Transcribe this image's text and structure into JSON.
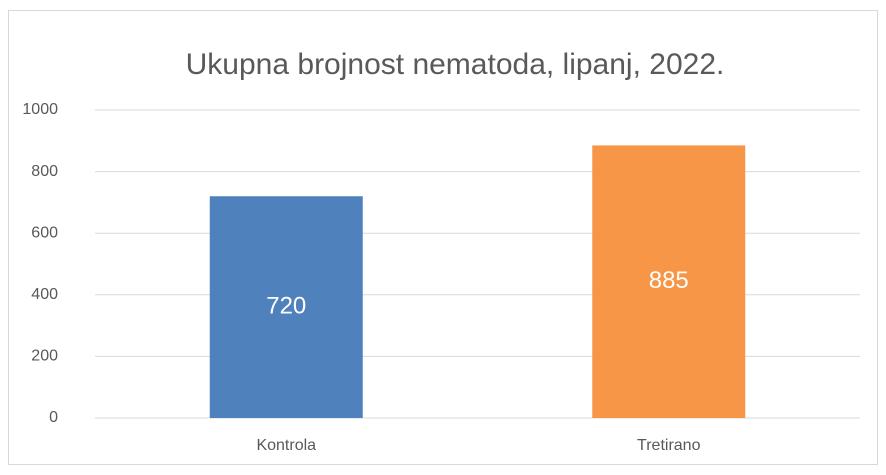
{
  "chart_data": {
    "type": "bar",
    "title": "Ukupna brojnost nematoda, lipanj, 2022.",
    "categories": [
      "Kontrola",
      "Tretirano"
    ],
    "values": [
      720,
      885
    ],
    "colors": [
      "#4f81bd",
      "#f79646"
    ],
    "ylim": [
      0,
      1000
    ],
    "yticks": [
      0,
      200,
      400,
      600,
      800,
      1000
    ],
    "grid": true
  }
}
